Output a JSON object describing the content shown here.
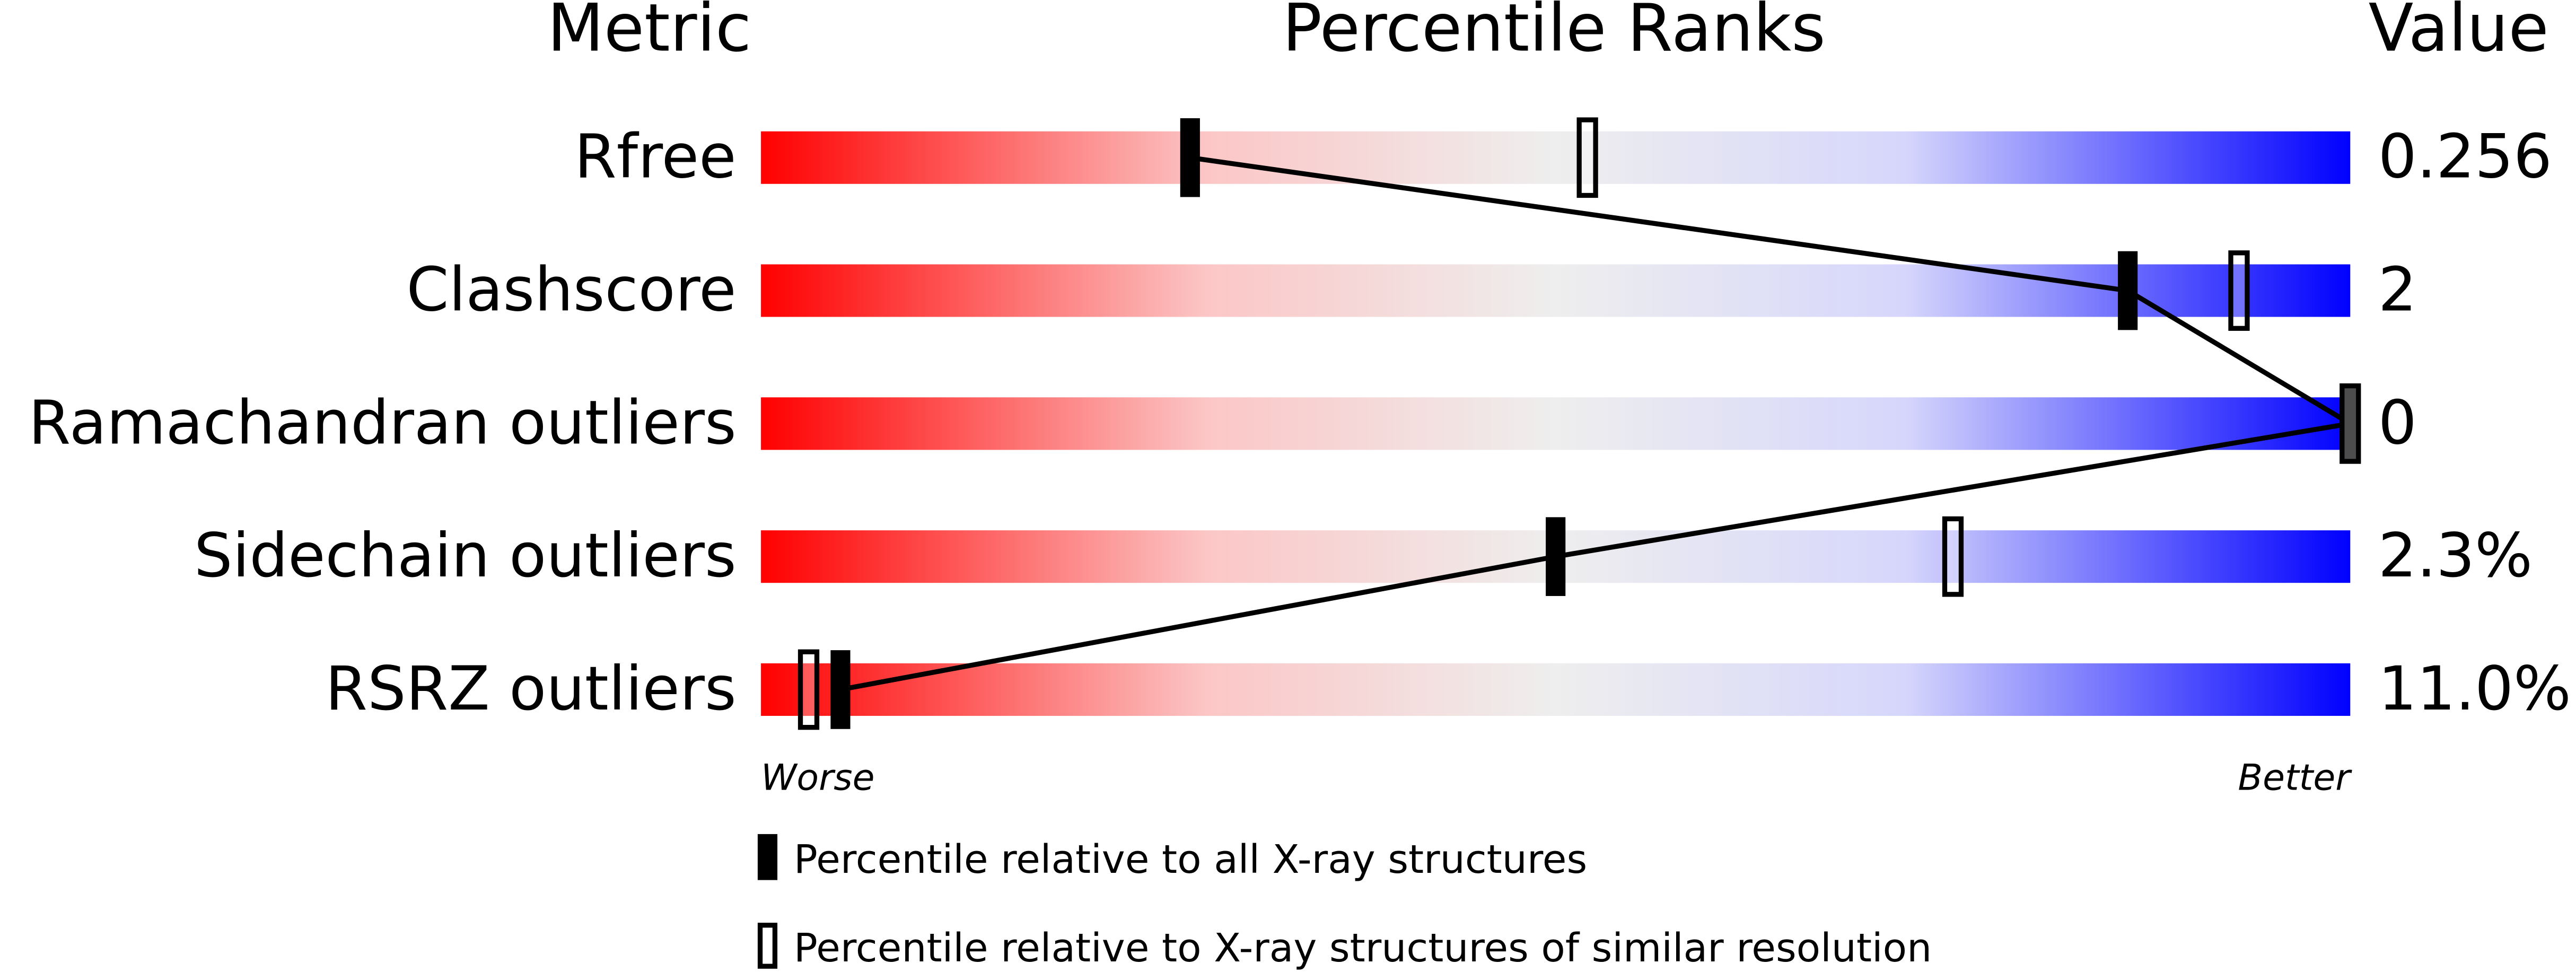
{
  "chart_data": {
    "type": "percentile",
    "title": "Percentile Ranks",
    "metric_header": "Metric",
    "value_header": "Value",
    "categories": [
      "Rfree",
      "Clashscore",
      "Ramachandran outliers",
      "Sidechain outliers",
      "RSRZ outliers"
    ],
    "metric_values": [
      "0.256",
      "2",
      "0",
      "2.3%",
      "11.0%"
    ],
    "series": [
      {
        "name": "Percentile relative to all X-ray structures",
        "color": "#000000",
        "filled": true,
        "values": [
          27,
          86,
          100,
          50,
          5
        ]
      },
      {
        "name": "Percentile relative to X-ray structures of similar resolution",
        "color": "#000000",
        "filled": false,
        "values": [
          52,
          93,
          100,
          75,
          3
        ]
      }
    ],
    "xlim": [
      0,
      100
    ],
    "low_label": "Worse",
    "high_label": "Better"
  }
}
